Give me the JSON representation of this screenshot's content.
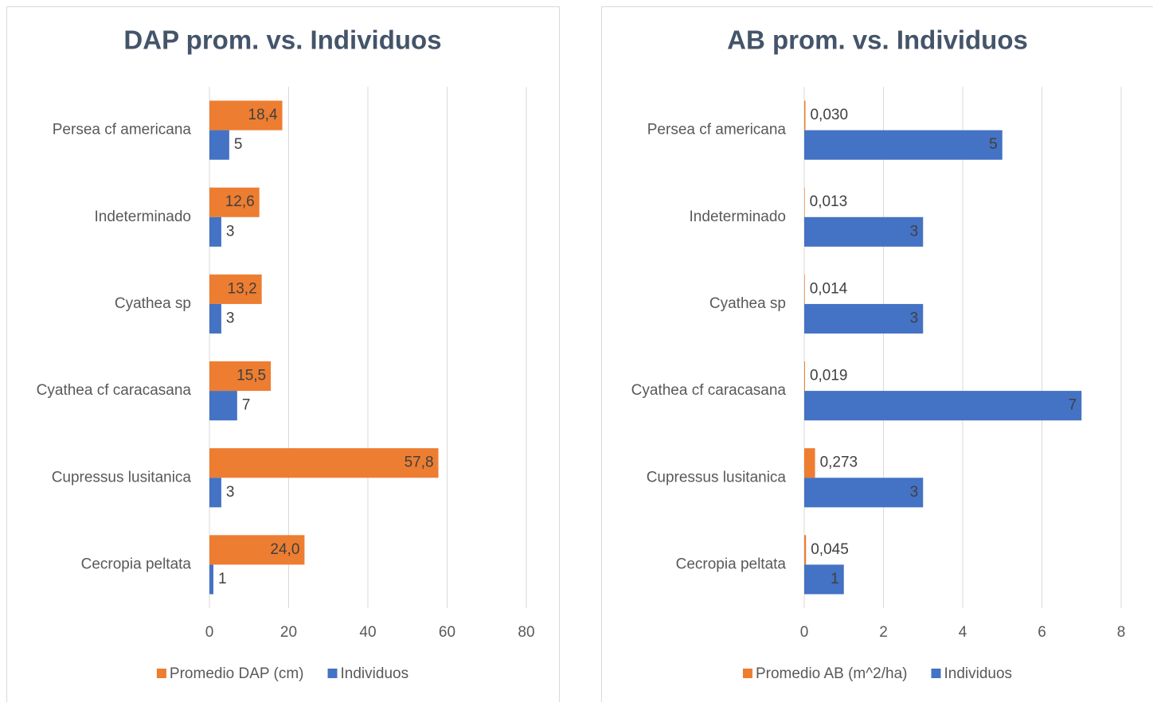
{
  "chart_data": [
    {
      "type": "bar",
      "orientation": "horizontal",
      "title": "DAP prom. vs. Individuos",
      "categories": [
        "Persea cf americana",
        "Indeterminado",
        "Cyathea sp",
        "Cyathea cf caracasana",
        "Cupressus lusitanica",
        "Cecropia peltata"
      ],
      "series": [
        {
          "name": "Promedio DAP (cm)",
          "color": "#ed7d31",
          "values": [
            18.4,
            12.6,
            13.2,
            15.5,
            57.8,
            24.0
          ],
          "value_labels": [
            "18,4",
            "12,6",
            "13,2",
            "15,5",
            "57,8",
            "24,0"
          ]
        },
        {
          "name": "Individuos",
          "color": "#4472c4",
          "values": [
            5,
            3,
            3,
            7,
            3,
            1
          ]
        }
      ],
      "xlim": [
        0,
        80
      ],
      "xticks": [
        0,
        20,
        40,
        60,
        80
      ],
      "grid": true,
      "legend": "bottom"
    },
    {
      "type": "bar",
      "orientation": "horizontal",
      "title": "AB prom. vs. Individuos",
      "categories": [
        "Persea cf americana",
        "Indeterminado",
        "Cyathea sp",
        "Cyathea cf caracasana",
        "Cupressus lusitanica",
        "Cecropia peltata"
      ],
      "series": [
        {
          "name": "Promedio AB (m^2/ha)",
          "color": "#ed7d31",
          "values": [
            0.03,
            0.013,
            0.014,
            0.019,
            0.273,
            0.045
          ],
          "value_labels": [
            "0,030",
            "0,013",
            "0,014",
            "0,019",
            "0,273",
            "0,045"
          ]
        },
        {
          "name": "Individuos",
          "color": "#4472c4",
          "values": [
            5,
            3,
            3,
            7,
            3,
            1
          ]
        }
      ],
      "xlim": [
        0,
        8
      ],
      "xticks": [
        0,
        2,
        4,
        6,
        8
      ],
      "grid": true,
      "legend": "bottom"
    }
  ]
}
